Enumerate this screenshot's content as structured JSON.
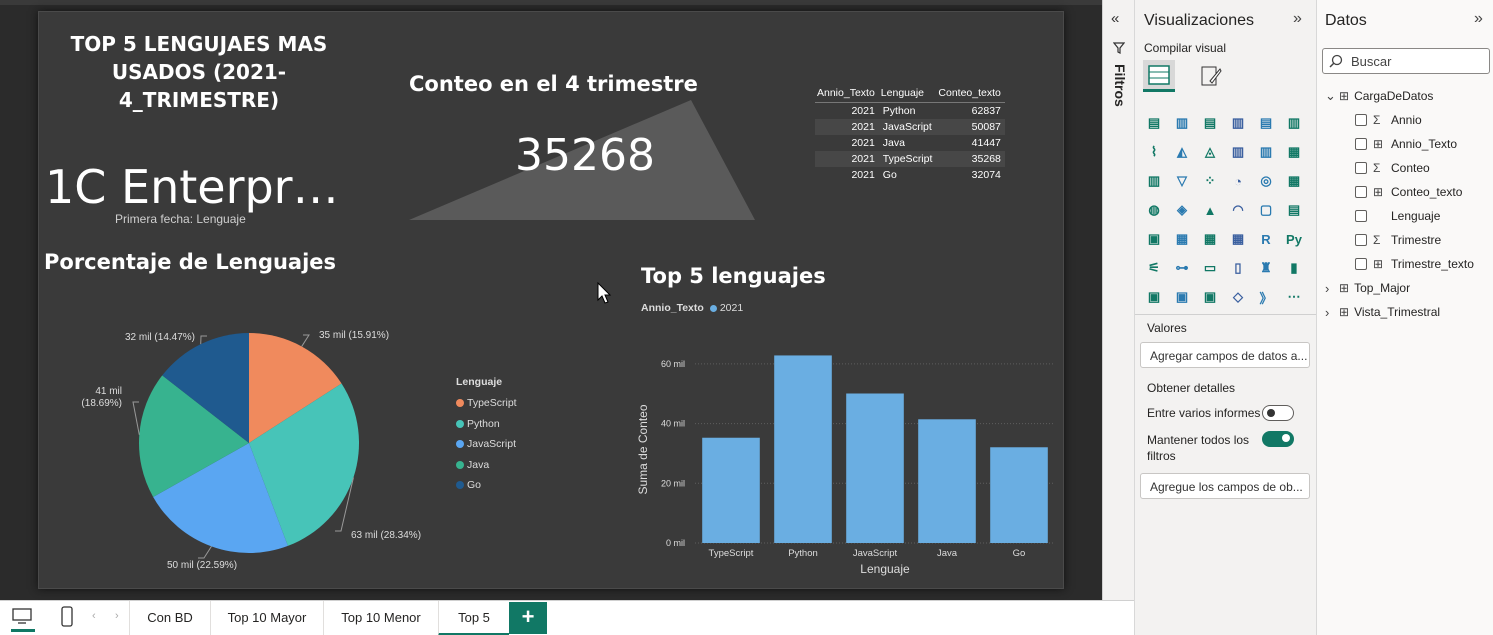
{
  "report": {
    "main_title": "TOP 5 LENGUJAES MAS USADOS (2021-4_TRIMESTRE)",
    "card": {
      "value": "1C Enterpr…",
      "caption": "Primera fecha: Lenguaje"
    },
    "kpi": {
      "title": "Conteo en el 4 trimestre",
      "value": "35268"
    },
    "table": {
      "headers": [
        "Annio_Texto",
        "Lenguaje",
        "Conteo_texto"
      ],
      "rows": [
        [
          "2021",
          "Python",
          "62837"
        ],
        [
          "2021",
          "JavaScript",
          "50087"
        ],
        [
          "2021",
          "Java",
          "41447"
        ],
        [
          "2021",
          "TypeScript",
          "35268"
        ],
        [
          "2021",
          "Go",
          "32074"
        ]
      ]
    }
  },
  "chart_data": [
    {
      "type": "pie",
      "title": "Porcentaje de Lenguajes",
      "legend_title": "Lenguaje",
      "legend_position": "right",
      "slices": [
        {
          "name": "TypeScript",
          "value": 35268,
          "label": "35 mil (15.91%)",
          "color": "#f08a5d"
        },
        {
          "name": "Python",
          "value": 62837,
          "label": "63 mil (28.34%)",
          "color": "#47c4b8"
        },
        {
          "name": "JavaScript",
          "value": 50087,
          "label": "50 mil (22.59%)",
          "color": "#5aa6f2"
        },
        {
          "name": "Java",
          "value": 41447,
          "label_line1": "41 mil",
          "label_line2": "(18.69%)",
          "color": "#37b38f"
        },
        {
          "name": "Go",
          "value": 32074,
          "label": "32 mil (14.47%)",
          "color": "#1f5a8f"
        }
      ]
    },
    {
      "type": "bar",
      "title": "Top 5 lenguajes",
      "legend_title": "Annio_Texto",
      "series": [
        {
          "name": "2021",
          "color": "#6aaee2",
          "values": [
            35268,
            62837,
            50087,
            41447,
            32074
          ]
        }
      ],
      "categories": [
        "TypeScript",
        "Python",
        "JavaScript",
        "Java",
        "Go"
      ],
      "xlabel": "Lenguaje",
      "ylabel": "Suma de Conteo",
      "ylim": [
        0,
        66000
      ],
      "yticks": [
        0,
        20000,
        40000,
        60000
      ],
      "ytick_labels": [
        "0 mil",
        "20 mil",
        "40 mil",
        "60 mil"
      ],
      "grid": true
    }
  ],
  "filters": {
    "label": "Filtros"
  },
  "viz_pane": {
    "title": "Visualizaciones",
    "subtitle": "Compilar visual",
    "valores_label": "Valores",
    "valores_placeholder": "Agregar campos de datos a...",
    "detalles_label": "Obtener detalles",
    "entre_informes": "Entre varios informes",
    "mantener_filtros_line1": "Mantener todos los",
    "mantener_filtros_line2": "filtros",
    "detalles_placeholder": "Agregue los campos de ob..."
  },
  "data_pane": {
    "title": "Datos",
    "search_placeholder": "Buscar",
    "tables": [
      {
        "name": "CargaDeDatos",
        "expanded": true,
        "fields": [
          {
            "name": "Annio",
            "icon": "sigma"
          },
          {
            "name": "Annio_Texto",
            "icon": "calc-table"
          },
          {
            "name": "Conteo",
            "icon": "sigma"
          },
          {
            "name": "Conteo_texto",
            "icon": "calc-table"
          },
          {
            "name": "Lenguaje",
            "icon": "none"
          },
          {
            "name": "Trimestre",
            "icon": "sigma"
          },
          {
            "name": "Trimestre_texto",
            "icon": "calc-table"
          }
        ]
      },
      {
        "name": "Top_Major",
        "expanded": false
      },
      {
        "name": "Vista_Trimestral",
        "expanded": false
      }
    ]
  },
  "page_tabs": [
    "Con BD",
    "Top 10 Mayor",
    "Top 10 Menor",
    "Top 5"
  ],
  "active_tab": "Top 5",
  "add_page": "+",
  "colors": {
    "accent": "#117865",
    "canvas_bg": "#3a3a3a"
  },
  "viz_icons": [
    "stacked-bar-icon",
    "stacked-column-icon",
    "clustered-bar-icon",
    "clustered-column-icon",
    "100-bar-icon",
    "100-column-icon",
    "line-chart-icon",
    "area-chart-icon",
    "stacked-area-icon",
    "line-column-icon",
    "line-clustered-icon",
    "ribbon-icon",
    "waterfall-icon",
    "funnel-icon",
    "scatter-icon",
    "pie-icon",
    "donut-icon",
    "treemap-icon",
    "map-icon",
    "filled-map-icon",
    "azure-map-icon",
    "gauge-icon",
    "card-icon",
    "multirow-card-icon",
    "kpi-icon",
    "slicer-icon",
    "table-icon",
    "matrix-icon",
    "r-visual-icon",
    "python-visual-icon",
    "key-influencers-icon",
    "decomposition-tree-icon",
    "qa-icon",
    "narrative-icon",
    "trophy-icon",
    "paginated-icon",
    "power-apps-icon",
    "power-automate-icon",
    "metrics-icon",
    "diamond-icon",
    "chevrons-icon",
    "more-icon"
  ]
}
